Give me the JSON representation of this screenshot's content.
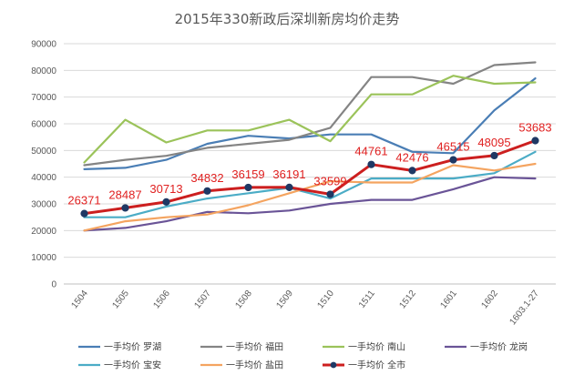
{
  "chart_data": {
    "type": "line",
    "title": "2015年330新政后深圳新房均价走势",
    "categories": [
      "1504",
      "1505",
      "1506",
      "1507",
      "1508",
      "1509",
      "1510",
      "1511",
      "1512",
      "1601",
      "1602",
      "1603.1-27"
    ],
    "ylim": [
      0,
      90000
    ],
    "yticks": [
      0,
      10000,
      20000,
      30000,
      40000,
      50000,
      60000,
      70000,
      80000,
      90000
    ],
    "grid": true,
    "legend_position": "bottom",
    "series": [
      {
        "name": "一手均价 罗湖",
        "color": "#4a7eb5",
        "values": [
          43000,
          43500,
          46500,
          52500,
          55500,
          54500,
          56000,
          56000,
          49500,
          49000,
          65000,
          77000
        ]
      },
      {
        "name": "一手均价 福田",
        "color": "#848484",
        "values": [
          44500,
          46500,
          48000,
          51000,
          52500,
          54000,
          58500,
          77500,
          77500,
          75000,
          82000,
          83000
        ]
      },
      {
        "name": "一手均价 南山",
        "color": "#9bc35a",
        "values": [
          45500,
          61500,
          53000,
          57500,
          57500,
          61500,
          53500,
          71000,
          71000,
          78000,
          75000,
          75500
        ]
      },
      {
        "name": "一手均价 龙岗",
        "color": "#6a5497",
        "values": [
          20000,
          21000,
          23500,
          27000,
          26500,
          27500,
          30000,
          31500,
          31500,
          35500,
          40000,
          39500
        ]
      },
      {
        "name": "一手均价 宝安",
        "color": "#4bacc6",
        "values": [
          25000,
          25000,
          29000,
          32000,
          34000,
          36000,
          32000,
          39500,
          39500,
          39500,
          41500,
          49500
        ]
      },
      {
        "name": "一手均价 盐田",
        "color": "#f4a460",
        "values": [
          20000,
          23500,
          25000,
          26000,
          29500,
          34000,
          38500,
          38000,
          38000,
          44500,
          42500,
          45000
        ]
      },
      {
        "name": "一手均价 全市",
        "color": "#cc1f1f",
        "highlight": true,
        "values": [
          26371,
          28487,
          30713,
          34832,
          36159,
          36191,
          33599,
          44761,
          42476,
          46515,
          48095,
          53683
        ]
      }
    ],
    "data_labels": [
      "26371",
      "28487",
      "30713",
      "34832",
      "36159",
      "36191",
      "33599",
      "44761",
      "42476",
      "46515",
      "48095",
      "53683"
    ],
    "data_label_color": "#e02020"
  }
}
